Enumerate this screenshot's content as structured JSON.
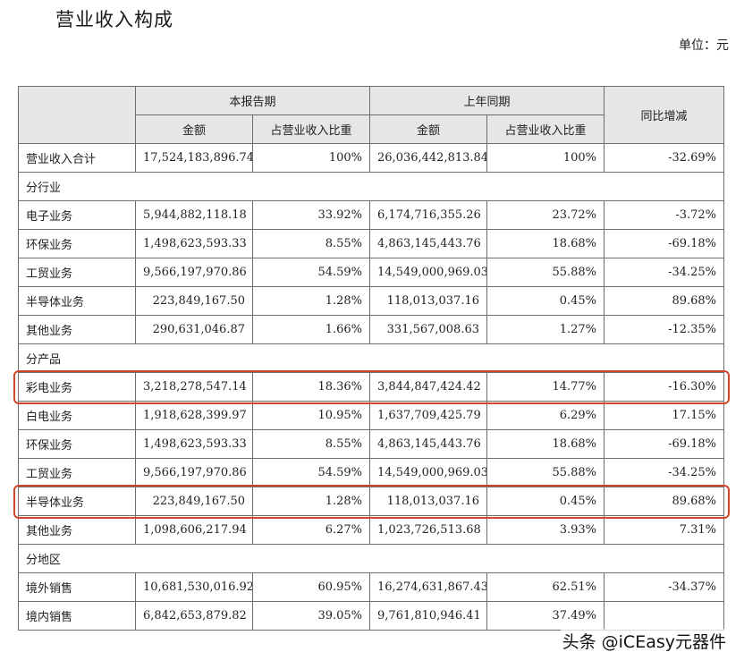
{
  "page": {
    "title": "营业收入构成",
    "unit": "单位：元",
    "watermark": "头条 @iCEasy元器件"
  },
  "table": {
    "group_headers": [
      "本报告期",
      "上年同期"
    ],
    "sub_headers": [
      "金额",
      "占营业收入比重",
      "金额",
      "占营业收入比重"
    ],
    "yoy_header": "同比增减",
    "total": {
      "label": "营业收入合计",
      "cur_amount": "17,524,183,896.74",
      "cur_pct": "100%",
      "prev_amount": "26,036,442,813.84",
      "prev_pct": "100%",
      "yoy": "-32.69%"
    },
    "sections": [
      {
        "label": "分行业",
        "rows": [
          {
            "label": "电子业务",
            "cur_amount": "5,944,882,118.18",
            "cur_pct": "33.92%",
            "prev_amount": "6,174,716,355.26",
            "prev_pct": "23.72%",
            "yoy": "-3.72%"
          },
          {
            "label": "环保业务",
            "cur_amount": "1,498,623,593.33",
            "cur_pct": "8.55%",
            "prev_amount": "4,863,145,443.76",
            "prev_pct": "18.68%",
            "yoy": "-69.18%"
          },
          {
            "label": "工贸业务",
            "cur_amount": "9,566,197,970.86",
            "cur_pct": "54.59%",
            "prev_amount": "14,549,000,969.03",
            "prev_pct": "55.88%",
            "yoy": "-34.25%"
          },
          {
            "label": "半导体业务",
            "cur_amount": "223,849,167.50",
            "cur_pct": "1.28%",
            "prev_amount": "118,013,037.16",
            "prev_pct": "0.45%",
            "yoy": "89.68%"
          },
          {
            "label": "其他业务",
            "cur_amount": "290,631,046.87",
            "cur_pct": "1.66%",
            "prev_amount": "331,567,008.63",
            "prev_pct": "1.27%",
            "yoy": "-12.35%"
          }
        ]
      },
      {
        "label": "分产品",
        "rows": [
          {
            "label": "彩电业务",
            "cur_amount": "3,218,278,547.14",
            "cur_pct": "18.36%",
            "prev_amount": "3,844,847,424.42",
            "prev_pct": "14.77%",
            "yoy": "-16.30%"
          },
          {
            "label": "白电业务",
            "cur_amount": "1,918,628,399.97",
            "cur_pct": "10.95%",
            "prev_amount": "1,637,709,425.79",
            "prev_pct": "6.29%",
            "yoy": "17.15%"
          },
          {
            "label": "环保业务",
            "cur_amount": "1,498,623,593.33",
            "cur_pct": "8.55%",
            "prev_amount": "4,863,145,443.76",
            "prev_pct": "18.68%",
            "yoy": "-69.18%"
          },
          {
            "label": "工贸业务",
            "cur_amount": "9,566,197,970.86",
            "cur_pct": "54.59%",
            "prev_amount": "14,549,000,969.03",
            "prev_pct": "55.88%",
            "yoy": "-34.25%"
          },
          {
            "label": "半导体业务",
            "cur_amount": "223,849,167.50",
            "cur_pct": "1.28%",
            "prev_amount": "118,013,037.16",
            "prev_pct": "0.45%",
            "yoy": "89.68%"
          },
          {
            "label": "其他业务",
            "cur_amount": "1,098,606,217.94",
            "cur_pct": "6.27%",
            "prev_amount": "1,023,726,513.68",
            "prev_pct": "3.93%",
            "yoy": "7.31%"
          }
        ]
      },
      {
        "label": "分地区",
        "rows": [
          {
            "label": "境外销售",
            "cur_amount": "10,681,530,016.92",
            "cur_pct": "60.95%",
            "prev_amount": "16,274,631,867.43",
            "prev_pct": "62.51%",
            "yoy": "-34.37%"
          },
          {
            "label": "境内销售",
            "cur_amount": "6,842,653,879.82",
            "cur_pct": "39.05%",
            "prev_amount": "9,761,810,946.41",
            "prev_pct": "37.49%",
            "yoy": ""
          }
        ]
      }
    ],
    "highlight_color": "#d0462a"
  }
}
